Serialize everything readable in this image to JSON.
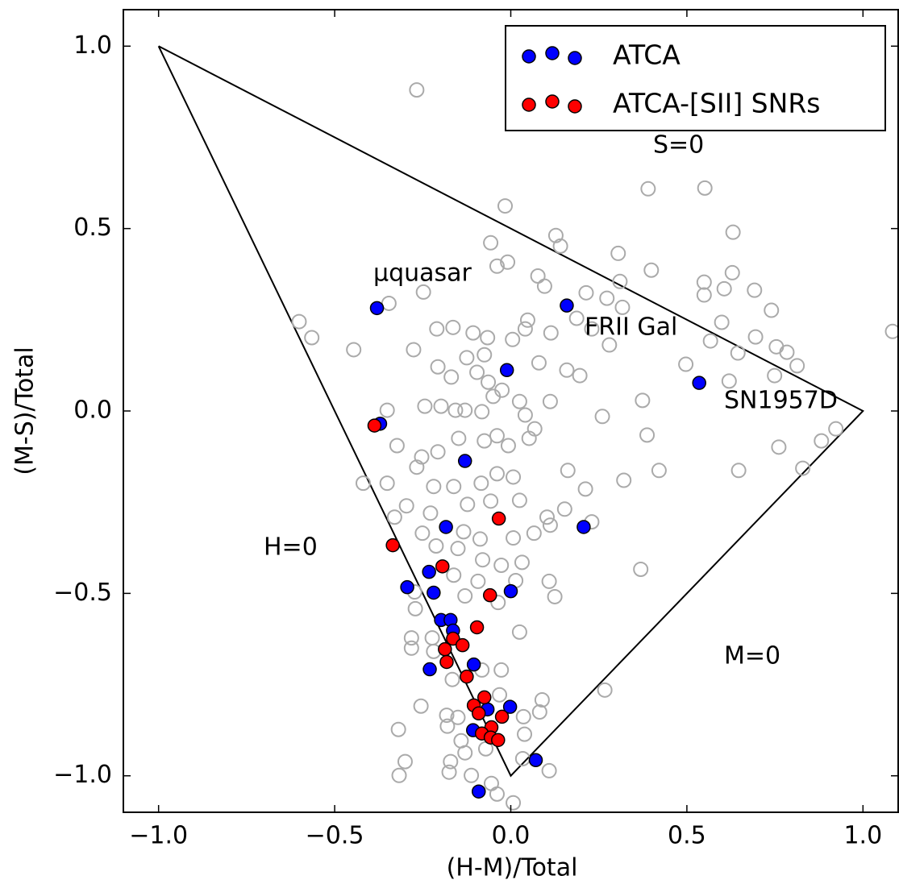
{
  "chart_data": {
    "type": "scatter",
    "xlabel": "(H-M)/Total",
    "ylabel": "(M-S)/Total",
    "xlim": [
      -1.1,
      1.1
    ],
    "ylim": [
      -1.1,
      1.1
    ],
    "xticks": [
      {
        "value": -1,
        "label": "−1.0"
      },
      {
        "value": -0.5,
        "label": "−0.5"
      },
      {
        "value": 0,
        "label": "0.0"
      },
      0.5,
      {
        "value": 1,
        "label": "1.0"
      }
    ],
    "yticks": [
      {
        "value": -1,
        "label": "−1.0"
      },
      {
        "value": -0.5,
        "label": "−0.5"
      },
      {
        "value": 0,
        "label": "0.0"
      },
      0.5,
      {
        "value": 1,
        "label": "1.0"
      }
    ],
    "legend": "upper right",
    "annotations": [
      "S=0",
      "μquasar",
      "FRII Gal",
      "SN1957D",
      "H=0",
      "M=0"
    ],
    "boundary": {
      "x": [
        -1,
        1,
        0,
        -1
      ],
      "y": [
        1,
        0,
        -1,
        1
      ]
    },
    "series": [
      {
        "color": "#aaaaaa",
        "filled": false,
        "x": [
          -0.267,
          0.39,
          0.551,
          -0.016,
          -0.057,
          0.128,
          0.141,
          0.305,
          0.631,
          -0.009,
          -0.039,
          0.077,
          0.096,
          0.399,
          0.629,
          0.31,
          0.549,
          0.606,
          0.692,
          0.549,
          -0.346,
          -0.248,
          0.214,
          0.273,
          0.317,
          0.74,
          -0.601,
          -0.565,
          -0.446,
          -0.276,
          -0.21,
          -0.164,
          -0.107,
          -0.066,
          0.005,
          0.041,
          0.114,
          0.048,
          0.187,
          0.23,
          0.28,
          0.599,
          0.695,
          0.754,
          0.784,
          0.567,
          0.645,
          -0.207,
          -0.125,
          -0.075,
          0.08,
          0.159,
          0.196,
          -0.096,
          -0.169,
          -0.064,
          -0.025,
          -0.05,
          0.497,
          0.62,
          0.749,
          0.813,
          -0.351,
          -0.244,
          -0.198,
          -0.157,
          -0.13,
          -0.082,
          0.025,
          0.112,
          0.041,
          0.26,
          0.374,
          0.387,
          0.882,
          0.923,
          0.761,
          -0.323,
          -0.253,
          -0.207,
          -0.148,
          -0.075,
          -0.039,
          -0.007,
          0.052,
          0.068,
          -0.419,
          -0.351,
          -0.267,
          -0.219,
          -0.162,
          -0.084,
          -0.039,
          0.007,
          0.162,
          0.321,
          0.421,
          0.647,
          0.829,
          0.212,
          -0.296,
          -0.228,
          -0.123,
          -0.057,
          0.025,
          0.103,
          0.153,
          0.23,
          -0.33,
          -0.251,
          -0.134,
          -0.087,
          0.007,
          0.066,
          0.112,
          -0.212,
          -0.15,
          -0.08,
          -0.027,
          0.032,
          0.109,
          0.369,
          -0.273,
          -0.162,
          -0.093,
          0.014,
          0.125,
          -0.271,
          -0.13,
          -0.036,
          0.025,
          -0.282,
          -0.223,
          -0.282,
          -0.219,
          -0.027,
          -0.082,
          -0.166,
          0.267,
          -0.255,
          -0.182,
          -0.15,
          0.089,
          0.082,
          0.036,
          -0.032,
          -0.319,
          -0.18,
          -0.141,
          0.039,
          -0.3,
          -0.171,
          -0.13,
          -0.071,
          0.034,
          -0.317,
          -0.175,
          -0.112,
          0.109,
          -0.039,
          0.007,
          -0.055,
          1.084
        ],
        "values": [
          0.88,
          0.609,
          0.611,
          0.562,
          0.461,
          0.481,
          0.452,
          0.432,
          0.49,
          0.408,
          0.397,
          0.37,
          0.342,
          0.386,
          0.379,
          0.355,
          0.353,
          0.335,
          0.331,
          0.318,
          0.295,
          0.326,
          0.324,
          0.309,
          0.284,
          0.276,
          0.245,
          0.201,
          0.168,
          0.168,
          0.225,
          0.229,
          0.214,
          0.201,
          0.196,
          0.225,
          0.214,
          0.249,
          0.254,
          0.225,
          0.181,
          0.243,
          0.203,
          0.176,
          0.161,
          0.192,
          0.159,
          0.121,
          0.146,
          0.154,
          0.132,
          0.112,
          0.097,
          0.106,
          0.093,
          0.079,
          0.057,
          0.04,
          0.128,
          0.082,
          0.097,
          0.124,
          0.002,
          0.013,
          0.013,
          0.002,
          0.002,
          -0.002,
          0.026,
          0.026,
          -0.011,
          -0.015,
          0.029,
          -0.066,
          -0.082,
          -0.049,
          -0.099,
          -0.095,
          -0.126,
          -0.112,
          -0.075,
          -0.082,
          -0.068,
          -0.095,
          -0.075,
          -0.049,
          -0.198,
          -0.198,
          -0.154,
          -0.207,
          -0.207,
          -0.198,
          -0.172,
          -0.181,
          -0.163,
          -0.19,
          -0.163,
          -0.163,
          -0.157,
          -0.214,
          -0.26,
          -0.28,
          -0.256,
          -0.247,
          -0.245,
          -0.291,
          -0.269,
          -0.304,
          -0.291,
          -0.335,
          -0.331,
          -0.351,
          -0.348,
          -0.335,
          -0.313,
          -0.37,
          -0.377,
          -0.408,
          -0.423,
          -0.415,
          -0.467,
          -0.434,
          -0.496,
          -0.45,
          -0.467,
          -0.465,
          -0.509,
          -0.542,
          -0.507,
          -0.525,
          -0.606,
          -0.622,
          -0.622,
          -0.65,
          -0.659,
          -0.71,
          -0.71,
          -0.736,
          -0.765,
          -0.809,
          -0.834,
          -0.84,
          -0.792,
          -0.825,
          -0.838,
          -0.778,
          -0.873,
          -0.864,
          -0.904,
          -0.886,
          -0.961,
          -0.961,
          -0.937,
          -0.926,
          -0.953,
          -0.999,
          -0.99,
          -0.999,
          -0.986,
          -1.05,
          -1.074,
          -1.021,
          0.218
        ]
      },
      {
        "name": "ATCA",
        "color": "#0000ff",
        "filled": true,
        "x": [
          -0.38,
          0.159,
          -0.011,
          0.535,
          -0.371,
          -0.13,
          -0.184,
          0.207,
          -0.294,
          -0.232,
          -0.219,
          0.0,
          -0.198,
          -0.171,
          -0.164,
          -0.23,
          -0.105,
          -0.066,
          -0.002,
          -0.107,
          0.071,
          -0.091
        ],
        "values": [
          0.282,
          0.289,
          0.112,
          0.077,
          -0.035,
          -0.137,
          -0.318,
          -0.318,
          -0.483,
          -0.441,
          -0.498,
          -0.494,
          -0.573,
          -0.573,
          -0.602,
          -0.708,
          -0.695,
          -0.818,
          -0.811,
          -0.875,
          -0.957,
          -1.043
        ]
      },
      {
        "name": "ATCA-[SII] SNRs",
        "color": "#ff0000",
        "filled": true,
        "x": [
          -0.387,
          -0.335,
          -0.194,
          -0.034,
          -0.059,
          -0.096,
          -0.164,
          -0.137,
          -0.187,
          -0.182,
          -0.125,
          -0.075,
          -0.105,
          -0.091,
          -0.025,
          -0.055,
          -0.082,
          -0.057,
          -0.036
        ],
        "values": [
          -0.04,
          -0.368,
          -0.426,
          -0.295,
          -0.505,
          -0.593,
          -0.624,
          -0.642,
          -0.653,
          -0.688,
          -0.728,
          -0.785,
          -0.807,
          -0.829,
          -0.838,
          -0.867,
          -0.884,
          -0.895,
          -0.902
        ]
      }
    ]
  }
}
